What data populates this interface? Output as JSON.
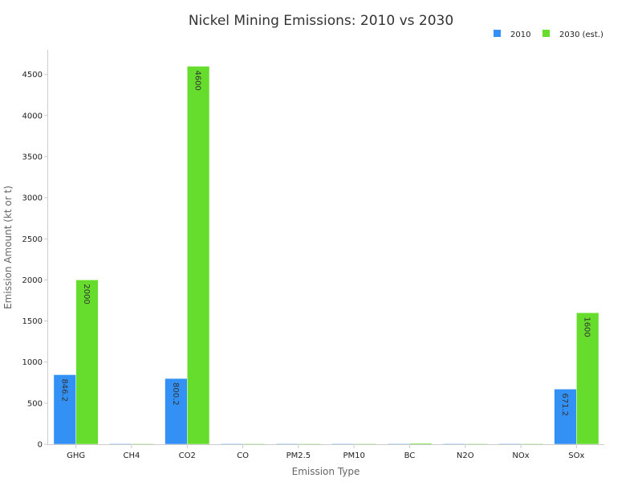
{
  "chart_data": {
    "type": "bar",
    "title": "Nickel Mining Emissions: 2010 vs 2030",
    "xlabel": "Emission Type",
    "ylabel": "Emission Amount (kt or t)",
    "categories": [
      "GHG",
      "CH4",
      "CO2",
      "CO",
      "PM2.5",
      "PM10",
      "BC",
      "N2O",
      "NOx",
      "SOx"
    ],
    "series": [
      {
        "name": "2010",
        "color": "#3391f5",
        "values": [
          846.2,
          0.3,
          800.2,
          1,
          0.4,
          0.5,
          1,
          0.1,
          0.1,
          671.2
        ],
        "labels": [
          "846.2",
          "",
          "800.2",
          "",
          "",
          "",
          "",
          "",
          "",
          "671.2"
        ]
      },
      {
        "name": "2030 (est.)",
        "color": "#66dd2c",
        "values": [
          2000,
          2,
          4600,
          8,
          3,
          5,
          12,
          0.4,
          4,
          1600
        ],
        "labels": [
          "2000",
          "",
          "4600",
          "",
          "",
          "",
          "",
          "",
          "",
          "1600"
        ]
      }
    ],
    "ylim": [
      0,
      4800
    ],
    "yticks": [
      0,
      500,
      1000,
      1500,
      2000,
      2500,
      3000,
      3500,
      4000,
      4500
    ],
    "legend_position": "top-right",
    "grid": false
  }
}
